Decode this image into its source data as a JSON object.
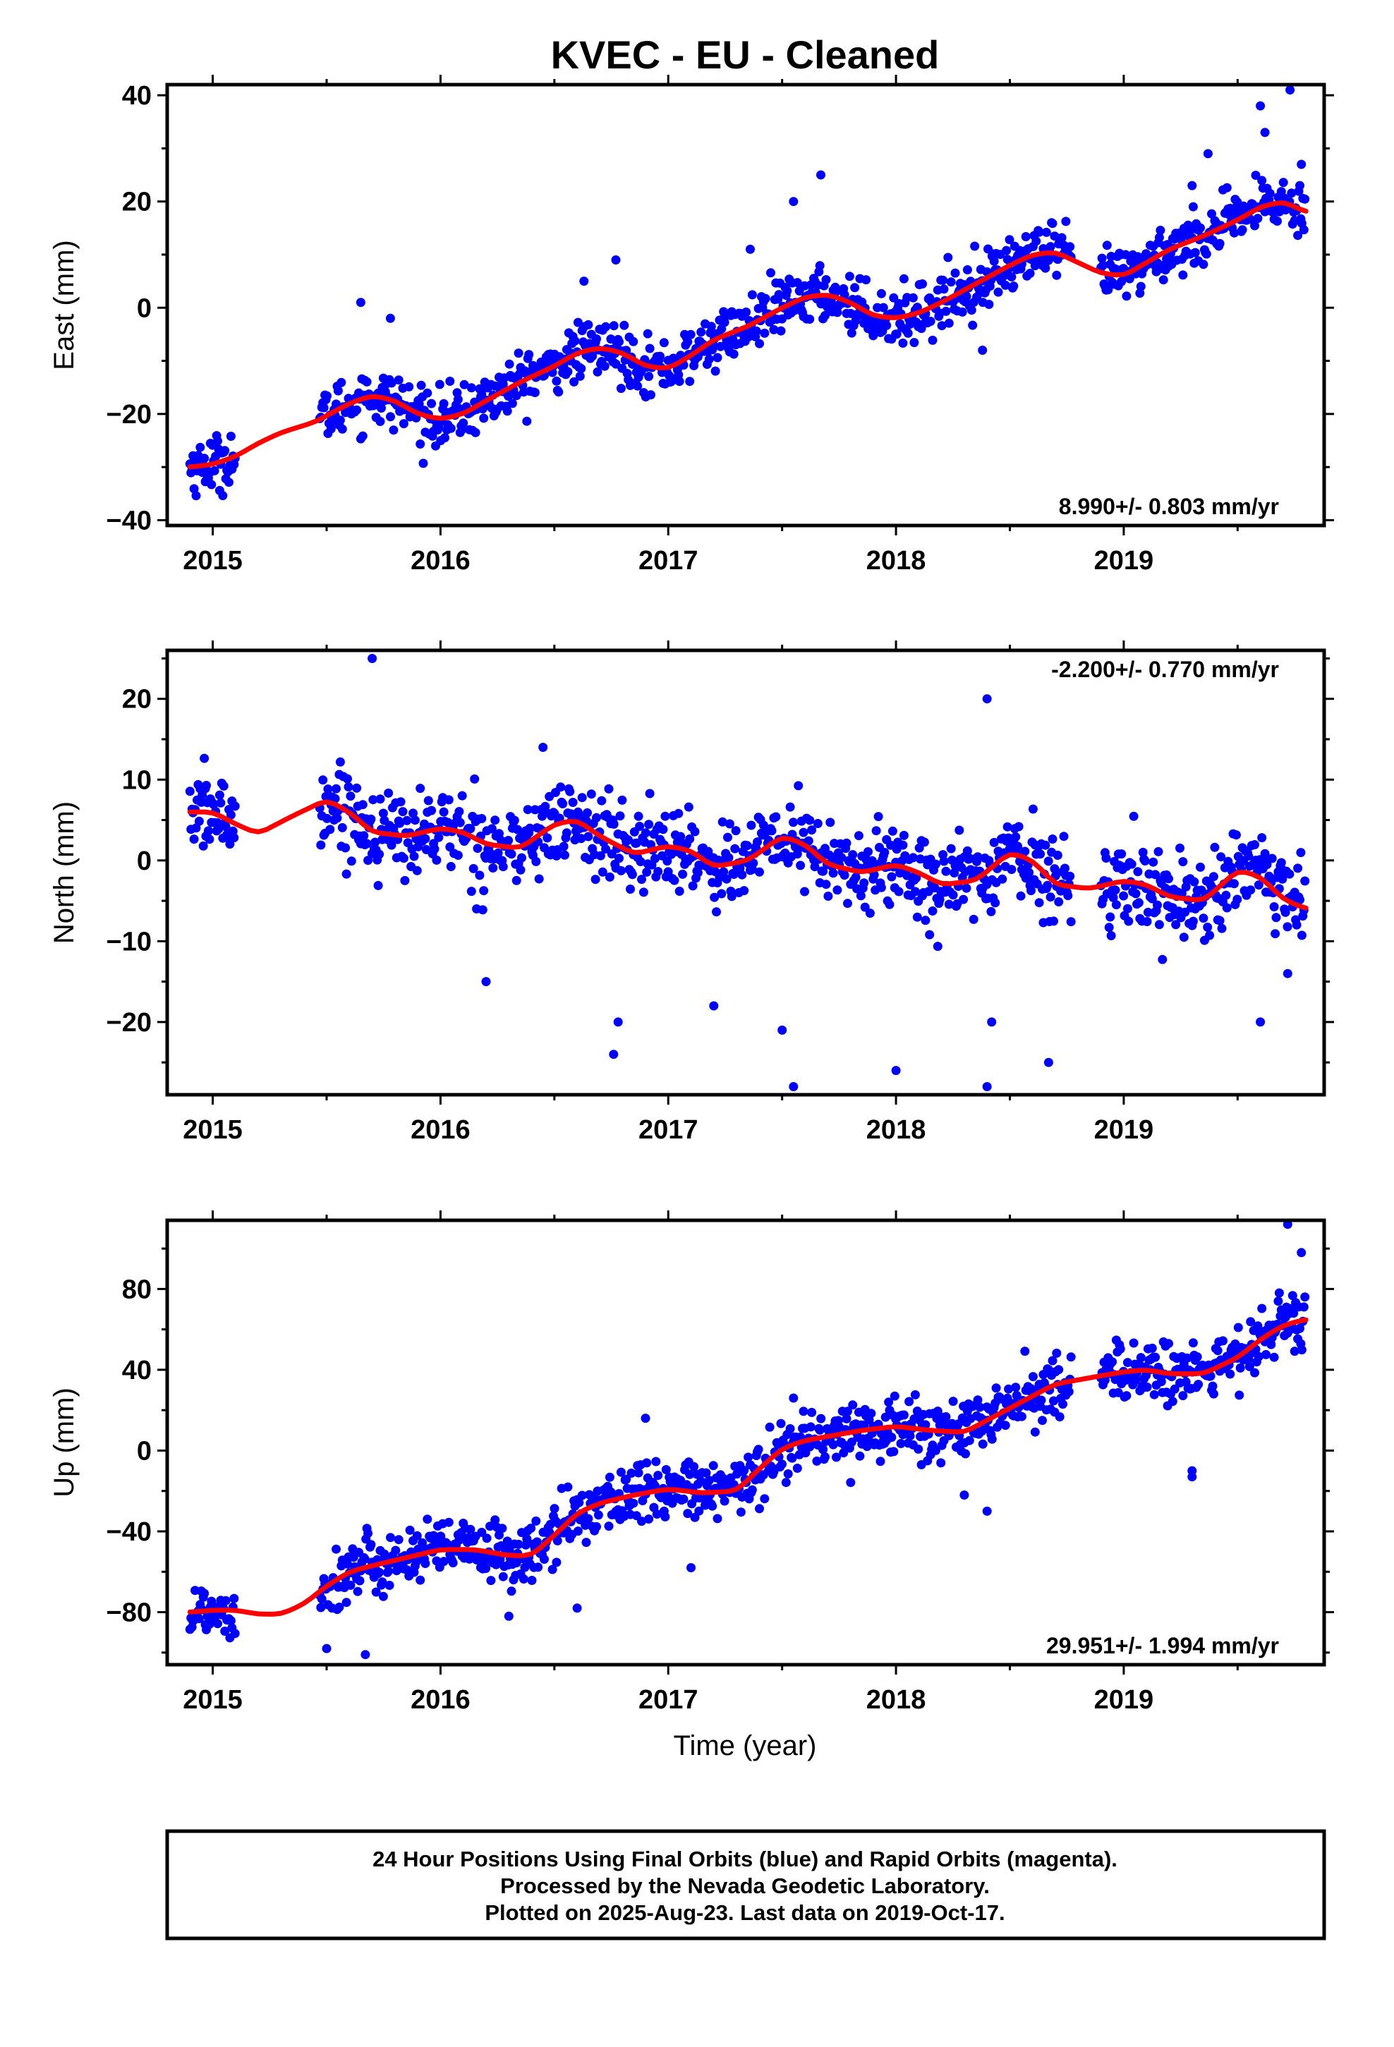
{
  "title": "KVEC  - EU - Cleaned",
  "xlabel": "Time (year)",
  "footer": [
    "24 Hour Positions Using Final Orbits (blue) and Rapid Orbits (magenta).",
    "Processed by the Nevada Geodetic Laboratory.",
    "Plotted on 2025-Aug-23. Last data on 2019-Oct-17."
  ],
  "colors": {
    "points": "#0000ff",
    "fit": "#ff0000",
    "frame": "#000000"
  },
  "chart_data": [
    {
      "type": "scatter",
      "ylabel": "East (mm)",
      "rate": "8.990+/- 0.803 mm/yr",
      "xlim": [
        2014.8,
        2019.88
      ],
      "ylim": [
        -41,
        42
      ],
      "xticks": [
        2015,
        2016,
        2017,
        2018,
        2019
      ],
      "yticks": [
        -40,
        -20,
        0,
        20,
        40
      ],
      "ytick_labels": [
        "−40",
        "−20",
        "0",
        "20",
        "40"
      ],
      "grid": false,
      "series": [
        {
          "role": "daily positions",
          "segments": [
            [
              2014.9,
              2015.1
            ],
            [
              2015.47,
              2018.77
            ],
            [
              2018.9,
              2019.8
            ]
          ],
          "scatter_sd": 2.6,
          "outliers": [
            [
              2015.65,
              1
            ],
            [
              2015.78,
              -2
            ],
            [
              2016.63,
              5
            ],
            [
              2016.77,
              9
            ],
            [
              2017.36,
              11
            ],
            [
              2017.55,
              20
            ],
            [
              2017.67,
              25
            ],
            [
              2018.38,
              -8
            ],
            [
              2019.3,
              23
            ],
            [
              2019.37,
              29
            ],
            [
              2019.6,
              38
            ],
            [
              2019.62,
              33
            ],
            [
              2019.73,
              41
            ],
            [
              2019.78,
              27
            ]
          ]
        },
        {
          "role": "model fit",
          "x": [
            2014.9,
            2015.0,
            2015.1,
            2015.2,
            2015.3,
            2015.45,
            2015.6,
            2015.7,
            2015.8,
            2015.9,
            2016.0,
            2016.1,
            2016.2,
            2016.35,
            2016.5,
            2016.6,
            2016.7,
            2016.8,
            2016.9,
            2017.0,
            2017.1,
            2017.2,
            2017.35,
            2017.5,
            2017.6,
            2017.7,
            2017.8,
            2017.9,
            2018.0,
            2018.1,
            2018.2,
            2018.35,
            2018.5,
            2018.6,
            2018.7,
            2018.8,
            2018.9,
            2019.0,
            2019.1,
            2019.2,
            2019.35,
            2019.5,
            2019.6,
            2019.7,
            2019.8
          ],
          "y": [
            -30,
            -29.5,
            -28,
            -25.5,
            -23.5,
            -21.5,
            -18,
            -16.5,
            -17.5,
            -20,
            -21,
            -20,
            -17.5,
            -14,
            -11,
            -8.5,
            -7.5,
            -8.5,
            -11,
            -11.5,
            -9,
            -6,
            -3.5,
            0,
            2,
            2.5,
            1,
            -1.5,
            -2,
            -1,
            1,
            4.5,
            8,
            10,
            10.5,
            8.5,
            6.5,
            6,
            8.5,
            11,
            13.5,
            16.5,
            19,
            20,
            18
          ]
        }
      ]
    },
    {
      "type": "scatter",
      "ylabel": "North (mm)",
      "rate": "-2.200+/- 0.770 mm/yr",
      "xlim": [
        2014.8,
        2019.88
      ],
      "ylim": [
        -29,
        26
      ],
      "xticks": [
        2015,
        2016,
        2017,
        2018,
        2019
      ],
      "yticks": [
        -20,
        -10,
        0,
        10,
        20
      ],
      "ytick_labels": [
        "−20",
        "−10",
        "0",
        "10",
        "20"
      ],
      "grid": false,
      "series": [
        {
          "role": "daily positions",
          "segments": [
            [
              2014.9,
              2015.1
            ],
            [
              2015.47,
              2018.77
            ],
            [
              2018.9,
              2019.8
            ]
          ],
          "scatter_sd": 2.6,
          "outliers": [
            [
              2014.97,
              3
            ],
            [
              2015.7,
              25
            ],
            [
              2016.2,
              -15
            ],
            [
              2016.45,
              14
            ],
            [
              2016.76,
              -24
            ],
            [
              2016.78,
              -20
            ],
            [
              2017.2,
              -18
            ],
            [
              2017.5,
              -21
            ],
            [
              2017.55,
              -28
            ],
            [
              2018.0,
              -26
            ],
            [
              2018.4,
              20
            ],
            [
              2018.42,
              -20
            ],
            [
              2018.4,
              -28
            ],
            [
              2018.67,
              -25
            ],
            [
              2019.6,
              -20
            ],
            [
              2019.72,
              -14
            ]
          ]
        },
        {
          "role": "model fit",
          "x": [
            2014.9,
            2015.0,
            2015.1,
            2015.2,
            2015.35,
            2015.5,
            2015.6,
            2015.7,
            2015.85,
            2016.0,
            2016.1,
            2016.2,
            2016.35,
            2016.5,
            2016.6,
            2016.7,
            2016.85,
            2017.0,
            2017.1,
            2017.2,
            2017.35,
            2017.5,
            2017.6,
            2017.7,
            2017.85,
            2018.0,
            2018.1,
            2018.2,
            2018.35,
            2018.5,
            2018.6,
            2018.7,
            2018.85,
            2019.0,
            2019.1,
            2019.2,
            2019.35,
            2019.5,
            2019.6,
            2019.7,
            2019.8
          ],
          "y": [
            6,
            6,
            4.5,
            3.3,
            5.5,
            7.5,
            6,
            3.5,
            3,
            4,
            3.5,
            2,
            1.5,
            4.5,
            5,
            3,
            0.8,
            1.8,
            1.2,
            -0.8,
            0,
            3,
            2,
            -0.5,
            -1.5,
            -0.5,
            -1.5,
            -3,
            -2.5,
            1,
            0,
            -3,
            -3.5,
            -2.5,
            -3,
            -4.5,
            -5,
            -1.2,
            -2,
            -4.8,
            -6
          ]
        }
      ]
    },
    {
      "type": "scatter",
      "ylabel": "Up (mm)",
      "rate": "29.951+/- 1.994 mm/yr",
      "xlim": [
        2014.8,
        2019.88
      ],
      "ylim": [
        -106,
        114
      ],
      "xticks": [
        2015,
        2016,
        2017,
        2018,
        2019
      ],
      "yticks": [
        -80,
        -40,
        0,
        40,
        80
      ],
      "ytick_labels": [
        "−80",
        "−40",
        "0",
        "40",
        "80"
      ],
      "grid": false,
      "series": [
        {
          "role": "daily positions",
          "segments": [
            [
              2014.9,
              2015.1
            ],
            [
              2015.47,
              2018.77
            ],
            [
              2018.9,
              2019.8
            ]
          ],
          "scatter_sd": 7.5,
          "outliers": [
            [
              2015.5,
              -98
            ],
            [
              2015.67,
              -101
            ],
            [
              2016.3,
              -82
            ],
            [
              2016.6,
              -78
            ],
            [
              2016.9,
              16
            ],
            [
              2017.1,
              -58
            ],
            [
              2017.55,
              26
            ],
            [
              2018.3,
              -22
            ],
            [
              2018.4,
              -30
            ],
            [
              2019.3,
              -10
            ],
            [
              2019.3,
              -13
            ],
            [
              2019.72,
              112
            ],
            [
              2019.78,
              98
            ]
          ]
        },
        {
          "role": "model fit",
          "x": [
            2014.9,
            2015.0,
            2015.1,
            2015.2,
            2015.3,
            2015.4,
            2015.5,
            2015.6,
            2015.7,
            2015.85,
            2016.0,
            2016.15,
            2016.3,
            2016.4,
            2016.5,
            2016.6,
            2016.7,
            2016.85,
            2017.0,
            2017.15,
            2017.3,
            2017.4,
            2017.5,
            2017.6,
            2017.7,
            2017.85,
            2018.0,
            2018.15,
            2018.3,
            2018.45,
            2018.6,
            2018.7,
            2018.85,
            2019.0,
            2019.1,
            2019.2,
            2019.35,
            2019.5,
            2019.6,
            2019.7,
            2019.8
          ],
          "y": [
            -80,
            -79,
            -79,
            -81,
            -81,
            -76,
            -67,
            -60,
            -57,
            -53,
            -49,
            -49,
            -52,
            -52,
            -42,
            -31,
            -26,
            -22,
            -19,
            -21,
            -20,
            -9,
            1,
            5,
            7,
            10,
            12,
            10,
            9,
            18,
            27,
            33,
            36,
            39,
            40,
            38,
            38,
            46,
            55,
            62,
            65
          ]
        }
      ]
    }
  ]
}
